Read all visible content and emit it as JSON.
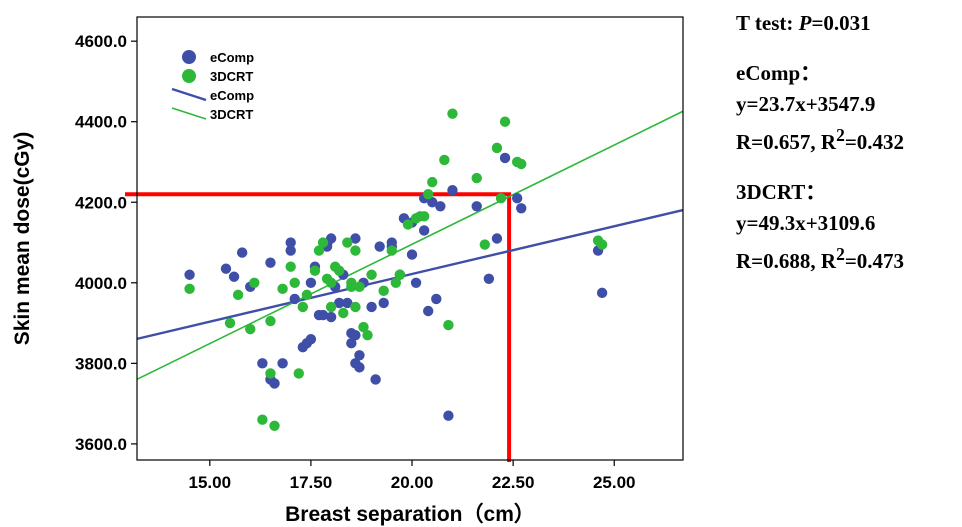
{
  "chart_data": {
    "type": "scatter",
    "xlabel": "Breast separation（cm）",
    "ylabel": "Skin mean dose(cGy)",
    "xlim": [
      13.2,
      26.7
    ],
    "ylim": [
      3560,
      4660
    ],
    "x_ticks": [
      "15.00",
      "17.50",
      "20.00",
      "22.50",
      "25.00"
    ],
    "x_tick_values": [
      15,
      17.5,
      20,
      22.5,
      25
    ],
    "y_ticks": [
      "3600.0",
      "3800.0",
      "4000.0",
      "4200.0",
      "4400.0",
      "4600.0"
    ],
    "y_tick_values": [
      3600,
      3800,
      4000,
      4200,
      4400,
      4600
    ],
    "grid": false,
    "legend_position": "top-left",
    "legend": [
      {
        "label": "eComp",
        "kind": "marker",
        "series": "eComp"
      },
      {
        "label": "3DCRT",
        "kind": "marker",
        "series": "3DCRT"
      },
      {
        "label": "eComp",
        "kind": "line",
        "series": "eComp"
      },
      {
        "label": "3DCRT",
        "kind": "line",
        "series": "3DCRT"
      }
    ],
    "series": [
      {
        "name": "eComp",
        "color": "#3f4fa8",
        "fit": {
          "slope": 23.7,
          "intercept": 3547.9
        },
        "points": [
          [
            14.5,
            4020
          ],
          [
            15.4,
            4035
          ],
          [
            15.6,
            4015
          ],
          [
            15.8,
            4075
          ],
          [
            16.0,
            3990
          ],
          [
            16.3,
            3800
          ],
          [
            16.5,
            4050
          ],
          [
            16.5,
            3760
          ],
          [
            16.6,
            3750
          ],
          [
            16.8,
            3800
          ],
          [
            17.0,
            4100
          ],
          [
            17.0,
            4080
          ],
          [
            17.1,
            3960
          ],
          [
            17.3,
            3840
          ],
          [
            17.4,
            3850
          ],
          [
            17.5,
            4000
          ],
          [
            17.5,
            3860
          ],
          [
            17.6,
            4040
          ],
          [
            17.7,
            3920
          ],
          [
            17.8,
            3920
          ],
          [
            17.9,
            4095
          ],
          [
            17.9,
            4090
          ],
          [
            18.0,
            3915
          ],
          [
            18.0,
            4110
          ],
          [
            18.1,
            3990
          ],
          [
            18.2,
            3950
          ],
          [
            18.3,
            4020
          ],
          [
            18.4,
            3950
          ],
          [
            18.5,
            3875
          ],
          [
            18.5,
            3850
          ],
          [
            18.6,
            3870
          ],
          [
            18.6,
            3800
          ],
          [
            18.6,
            4110
          ],
          [
            18.7,
            3790
          ],
          [
            18.7,
            3820
          ],
          [
            18.8,
            4000
          ],
          [
            19.0,
            3940
          ],
          [
            19.1,
            3760
          ],
          [
            19.2,
            4090
          ],
          [
            19.3,
            3950
          ],
          [
            19.5,
            4100
          ],
          [
            19.5,
            4090
          ],
          [
            19.7,
            4020
          ],
          [
            19.8,
            4160
          ],
          [
            20.0,
            4150
          ],
          [
            20.0,
            4070
          ],
          [
            20.1,
            4000
          ],
          [
            20.3,
            4130
          ],
          [
            20.3,
            4210
          ],
          [
            20.4,
            3930
          ],
          [
            20.5,
            4200
          ],
          [
            20.6,
            3960
          ],
          [
            20.7,
            4190
          ],
          [
            20.9,
            3670
          ],
          [
            21.0,
            4230
          ],
          [
            21.6,
            4190
          ],
          [
            21.9,
            4010
          ],
          [
            22.1,
            4110
          ],
          [
            22.3,
            4310
          ],
          [
            22.6,
            4210
          ],
          [
            22.7,
            4185
          ],
          [
            24.6,
            4080
          ],
          [
            24.7,
            3975
          ]
        ]
      },
      {
        "name": "3DCRT",
        "color": "#2db83a",
        "fit": {
          "slope": 49.3,
          "intercept": 3109.6
        },
        "points": [
          [
            14.5,
            3985
          ],
          [
            15.5,
            3900
          ],
          [
            15.7,
            3970
          ],
          [
            16.0,
            3885
          ],
          [
            16.1,
            4000
          ],
          [
            16.3,
            3660
          ],
          [
            16.5,
            3905
          ],
          [
            16.5,
            3775
          ],
          [
            16.6,
            3645
          ],
          [
            16.8,
            3985
          ],
          [
            17.0,
            4040
          ],
          [
            17.1,
            4000
          ],
          [
            17.2,
            3775
          ],
          [
            17.3,
            3940
          ],
          [
            17.4,
            3970
          ],
          [
            17.6,
            4030
          ],
          [
            17.7,
            4080
          ],
          [
            17.8,
            4100
          ],
          [
            17.9,
            4010
          ],
          [
            18.0,
            4000
          ],
          [
            18.0,
            3940
          ],
          [
            18.1,
            4040
          ],
          [
            18.2,
            4030
          ],
          [
            18.3,
            3925
          ],
          [
            18.4,
            4100
          ],
          [
            18.5,
            4000
          ],
          [
            18.5,
            3990
          ],
          [
            18.6,
            3940
          ],
          [
            18.6,
            4080
          ],
          [
            18.7,
            3990
          ],
          [
            18.8,
            3890
          ],
          [
            18.9,
            3870
          ],
          [
            19.0,
            4020
          ],
          [
            19.3,
            3980
          ],
          [
            19.5,
            4080
          ],
          [
            19.6,
            4000
          ],
          [
            19.7,
            4020
          ],
          [
            19.9,
            4145
          ],
          [
            20.1,
            4160
          ],
          [
            20.2,
            4165
          ],
          [
            20.3,
            4165
          ],
          [
            20.4,
            4220
          ],
          [
            20.5,
            4250
          ],
          [
            20.8,
            4305
          ],
          [
            20.9,
            3895
          ],
          [
            21.0,
            4420
          ],
          [
            21.6,
            4260
          ],
          [
            21.8,
            4095
          ],
          [
            22.1,
            4335
          ],
          [
            22.2,
            4210
          ],
          [
            22.3,
            4400
          ],
          [
            22.6,
            4300
          ],
          [
            22.7,
            4295
          ],
          [
            24.6,
            4105
          ],
          [
            24.7,
            4095
          ]
        ]
      }
    ],
    "reference_lines": [
      {
        "color": "#ff0000",
        "from": [
          13.2,
          4220
        ],
        "corner": [
          22.4,
          4220
        ],
        "to": [
          22.4,
          3560
        ]
      }
    ]
  },
  "annotations": {
    "ttest_prefix": "T  test: ",
    "ttest_p": "P",
    "ttest_value": "=0.031",
    "ecomp_title": "eComp：",
    "ecomp_eq": "y=23.7x+3547.9",
    "ecomp_r": "R=0.657, R",
    "ecomp_r2_sup": "2",
    "ecomp_r2_val": "=0.432",
    "crt_title": "3DCRT：",
    "crt_eq": "y=49.3x+3109.6",
    "crt_r": "R=0.688, R",
    "crt_r2_sup": "2",
    "crt_r2_val": "=0.473"
  }
}
